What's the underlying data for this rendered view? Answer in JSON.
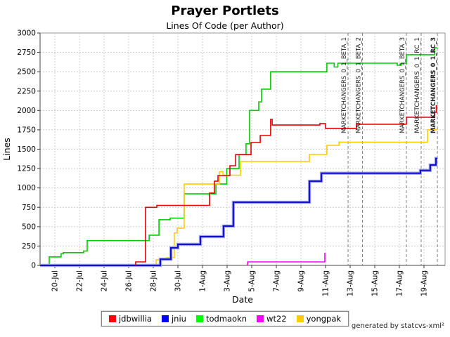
{
  "title": "Prayer Portlets",
  "subtitle": "Lines Of Code (per Author)",
  "footer": "generated by statcvs-xml²",
  "chart_data": {
    "type": "line",
    "step": true,
    "title": "Prayer Portlets",
    "subtitle": "Lines Of Code (per Author)",
    "xlabel": "Date",
    "ylabel": "Lines",
    "ylim": [
      0,
      3000
    ],
    "ytick_interval": 250,
    "grid": true,
    "legend_position": "bottom",
    "x_unit": "days (1 = 20-Jul)",
    "xticks": [
      {
        "day": 1,
        "label": "20-Jul"
      },
      {
        "day": 3,
        "label": "22-Jul"
      },
      {
        "day": 5,
        "label": "24-Jul"
      },
      {
        "day": 7,
        "label": "26-Jul"
      },
      {
        "day": 9,
        "label": "28-Jul"
      },
      {
        "day": 11,
        "label": "30-Jul"
      },
      {
        "day": 13,
        "label": "1-Aug"
      },
      {
        "day": 15,
        "label": "3-Aug"
      },
      {
        "day": 17,
        "label": "5-Aug"
      },
      {
        "day": 19,
        "label": "7-Aug"
      },
      {
        "day": 21,
        "label": "9-Aug"
      },
      {
        "day": 23,
        "label": "11-Aug"
      },
      {
        "day": 25,
        "label": "13-Aug"
      },
      {
        "day": 27,
        "label": "15-Aug"
      },
      {
        "day": 29,
        "label": "17-Aug"
      },
      {
        "day": 31,
        "label": "19-Aug"
      }
    ],
    "series": [
      {
        "name": "todmaokn",
        "color": "#00cc00",
        "width": 1.6,
        "end_day": 32.09,
        "points": [
          [
            0.54,
            110
          ],
          [
            1.51,
            150
          ],
          [
            1.69,
            165
          ],
          [
            3.34,
            185
          ],
          [
            3.63,
            320
          ],
          [
            8.66,
            390
          ],
          [
            9.46,
            590
          ],
          [
            10.37,
            610
          ],
          [
            11.51,
            924
          ],
          [
            14.09,
            1050
          ],
          [
            14.97,
            1250
          ],
          [
            15.97,
            1430
          ],
          [
            16.54,
            1570
          ],
          [
            16.83,
            2000
          ],
          [
            17.57,
            2110
          ],
          [
            17.8,
            2275
          ],
          [
            18.54,
            2500
          ],
          [
            23.11,
            2610
          ],
          [
            23.7,
            2560
          ],
          [
            24.0,
            2610
          ],
          [
            28.83,
            2583
          ],
          [
            29.14,
            2610
          ],
          [
            29.57,
            2720
          ],
          [
            31.86,
            2810
          ]
        ]
      },
      {
        "name": "yongpak",
        "color": "#ffcc00",
        "width": 1.6,
        "end_day": 32.09,
        "points": [
          [
            9.23,
            72
          ],
          [
            10.09,
            100
          ],
          [
            10.71,
            420
          ],
          [
            10.94,
            480
          ],
          [
            11.51,
            1050
          ],
          [
            14.37,
            1210
          ],
          [
            14.66,
            1165
          ],
          [
            16.09,
            1341
          ],
          [
            21.69,
            1432
          ],
          [
            23.11,
            1550
          ],
          [
            24.09,
            1590
          ],
          [
            31.29,
            1750
          ]
        ]
      },
      {
        "name": "wt22",
        "color": "#ff00ff",
        "width": 1.6,
        "end_day": 22.94,
        "points": [
          [
            16.66,
            45
          ],
          [
            22.94,
            163
          ]
        ]
      },
      {
        "name": "jniu",
        "color": "#1111cc",
        "width": 2.0,
        "halo": "#a0a0e8",
        "end_day": 32.09,
        "points": [
          [
            -0.2,
            0
          ],
          [
            9.57,
            80
          ],
          [
            10.43,
            227
          ],
          [
            11.0,
            272
          ],
          [
            12.83,
            372
          ],
          [
            14.71,
            508
          ],
          [
            15.51,
            815
          ],
          [
            21.69,
            1087
          ],
          [
            22.66,
            1190
          ],
          [
            30.71,
            1225
          ],
          [
            31.51,
            1296
          ],
          [
            31.97,
            1380
          ]
        ]
      },
      {
        "name": "jdbwillia",
        "color": "#e60000",
        "width": 1.6,
        "end_day": 32.09,
        "points": [
          [
            7.57,
            45
          ],
          [
            8.37,
            750
          ],
          [
            9.29,
            775
          ],
          [
            13.57,
            933
          ],
          [
            13.97,
            1087
          ],
          [
            14.26,
            1160
          ],
          [
            15.23,
            1287
          ],
          [
            15.69,
            1430
          ],
          [
            16.94,
            1586
          ],
          [
            17.69,
            1677
          ],
          [
            18.54,
            1885
          ],
          [
            18.66,
            1812
          ],
          [
            22.54,
            1830
          ],
          [
            23.0,
            1768
          ],
          [
            25.51,
            1822
          ],
          [
            29.57,
            1912
          ],
          [
            31.86,
            1976
          ],
          [
            32.0,
            2060
          ]
        ]
      }
    ],
    "legend": [
      {
        "label": "jdbwillia",
        "color": "#ff0000"
      },
      {
        "label": "jniu",
        "color": "#0000ff"
      },
      {
        "label": "todmaokn",
        "color": "#00ff00"
      },
      {
        "label": "wt22",
        "color": "#ff00ff"
      },
      {
        "label": "yongpak",
        "color": "#ffcc00"
      }
    ],
    "markers": [
      {
        "label": "MARKETCHANGERS_0_1_BETA_1",
        "day": 24.83,
        "bold": false
      },
      {
        "label": "MARKETCHANGERS_0_1_BETA_2",
        "day": 26.0,
        "bold": false
      },
      {
        "label": "MARKETCHANGERS_0_1_BETA_3",
        "day": 29.57,
        "bold": false
      },
      {
        "label": "MARKETCHANGERS_0_1_RC_1",
        "day": 30.77,
        "bold": false
      },
      {
        "label": "MARKETCHANGERS_0_1_RC_3",
        "day": 32.09,
        "bold": true
      }
    ]
  }
}
